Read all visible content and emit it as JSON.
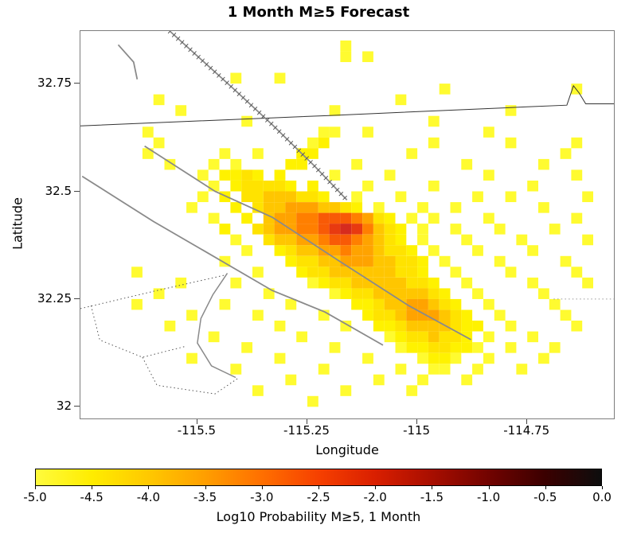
{
  "title": "1 Month M≥5 Forecast",
  "axes": {
    "xlabel": "Longitude",
    "ylabel": "Latitude",
    "x_ticks": [
      {
        "v": -115.5,
        "label": "-115.5"
      },
      {
        "v": -115.25,
        "label": "-115.25"
      },
      {
        "v": -115.0,
        "label": "-115"
      },
      {
        "v": -114.75,
        "label": "-114.75"
      }
    ],
    "y_ticks": [
      {
        "v": 32.75,
        "label": "32.75"
      },
      {
        "v": 32.5,
        "label": "32.5"
      },
      {
        "v": 32.25,
        "label": "32.25"
      },
      {
        "v": 32.0,
        "label": "32"
      }
    ]
  },
  "colorbar": {
    "label": "Log10 Probability M≥5, 1 Month",
    "ticks": [
      "-5.0",
      "-4.5",
      "-4.0",
      "-3.5",
      "-3.0",
      "-2.5",
      "-2.0",
      "-1.5",
      "-1.0",
      "-0.5",
      "0.0"
    ],
    "gradient": [
      {
        "t": 0.0,
        "color": "#FFFB3D"
      },
      {
        "t": 0.1,
        "color": "#FFEC00"
      },
      {
        "t": 0.2,
        "color": "#FFC800"
      },
      {
        "t": 0.3,
        "color": "#FF9E00"
      },
      {
        "t": 0.4,
        "color": "#FF6F00"
      },
      {
        "t": 0.5,
        "color": "#F64000"
      },
      {
        "t": 0.6,
        "color": "#D91F00"
      },
      {
        "t": 0.7,
        "color": "#A80E00"
      },
      {
        "t": 0.8,
        "color": "#720300"
      },
      {
        "t": 0.9,
        "color": "#3B0000"
      },
      {
        "t": 1.0,
        "color": "#0D0D0D"
      }
    ]
  },
  "chart_data": {
    "type": "heatmap",
    "title": "1 Month M≥5 Forecast",
    "xlabel": "Longitude",
    "ylabel": "Latitude",
    "xlim": [
      -115.766,
      -114.553
    ],
    "ylim": [
      31.973,
      32.872
    ],
    "value_label": "Log10 Probability M≥5, 1 Month",
    "value_range": [
      -5.0,
      0.0
    ],
    "legend_position": "bottom-colorbar",
    "grid_on": false,
    "grid": {
      "lon0": -115.75,
      "lat0": 32.85,
      "dlon": 0.025,
      "dlat": 0.025,
      "levels": {
        "a": {
          "value": -5.0,
          "color": "#FFFB30"
        },
        "b": {
          "value": -4.8,
          "color": "#FFF200"
        },
        "c": {
          "value": -4.5,
          "color": "#FFE300"
        },
        "d": {
          "value": -4.1,
          "color": "#FFC600"
        },
        "e": {
          "value": -3.7,
          "color": "#FFA300"
        },
        "f": {
          "value": -3.3,
          "color": "#FF7F00"
        },
        "g": {
          "value": -2.9,
          "color": "#F85A06"
        },
        "h": {
          "value": -2.6,
          "color": "#E83A10"
        },
        "i": {
          "value": -2.3,
          "color": "#D62B1E"
        }
      },
      "rows": [
        ".......................a.......................",
        ".......................a.a.....................",
        "...............................................",
        ".............a...a.............................",
        "................................a...........a..",
        "......a.....................a..................",
        "........a.............a...............a........",
        "..............a................a...............",
        ".....a...............aa..a..........a..........",
        "......a.............ab.........a......a.....a..",
        ".....a......a..a...bb........a.............a...",
        ".......a...a.a....bb....a.........a......a.....",
        "..........a.bbcb.b....a....a........a.......a..",
        "...........a.bccccb.b....a.....a........a......",
        "..........a.b.ccdddccb..a...a......a..a......a.",
        ".........a...b.cddeeeddcb.a...a..a.......a.....",
        "...........a..b.deeffgggfecb.a.a....a.......a..",
        "............b..cdeeffghihfdcb.a..a...a....a....",
        ".............a..cddeefggfedcb.a...a....a.....a.",
        "..............a..bcddeefeedccb.a...a....a......",
        "............a.....bccddeeeddccb.a....a.....a...",
        "....a..........a...bccddddddccb..a....a.....a..",
        "........a....a......abccdddddccb..a.....a....a.",
        "......a.........a.....abccdddddcb..a.....a.....",
        "....a.......a.....a.....bbcddeedcb..a.....a....",
        ".........a.....a.....a...bccdeeedcb..a.....a...",
        ".......a.........a.....a..bbcddddcbb..a.....a..",
        "...........a.......a.......abccdccb.a...a......",
        "..............a.......a.....abbccbba..a...a....",
        ".........a.......a.......a....abba..a....a.....",
        ".............a.......a......a..aa..a...a.......",
        "..................a.......a...a...a............",
        "...............a.......a.....a.................",
        "....................a.........................."
      ]
    },
    "map_features": [
      {
        "name": "international-border",
        "style": "solid",
        "color": "#333333",
        "width": 1,
        "points": [
          [
            -115.766,
            32.652
          ],
          [
            -115.2,
            32.676
          ],
          [
            -114.75,
            32.696
          ],
          [
            -114.66,
            32.7
          ],
          [
            -114.645,
            32.745
          ],
          [
            -114.632,
            32.728
          ],
          [
            -114.617,
            32.703
          ],
          [
            -114.553,
            32.703
          ]
        ]
      },
      {
        "name": "fault-hatched",
        "style": "hatched",
        "color": "#8a8a8a",
        "width": 1.8,
        "points": [
          [
            -115.563,
            32.872
          ],
          [
            -115.42,
            32.74
          ],
          [
            -115.33,
            32.655
          ],
          [
            -115.235,
            32.56
          ],
          [
            -115.16,
            32.48
          ]
        ]
      },
      {
        "name": "fault-short-northwest",
        "style": "solid",
        "color": "#8a8a8a",
        "width": 1.8,
        "points": [
          [
            -115.68,
            32.84
          ],
          [
            -115.645,
            32.8
          ],
          [
            -115.637,
            32.76
          ]
        ]
      },
      {
        "name": "fault-main",
        "style": "solid",
        "color": "#8a8a8a",
        "width": 1.8,
        "points": [
          [
            -115.62,
            32.605
          ],
          [
            -115.46,
            32.5
          ],
          [
            -115.33,
            32.44
          ],
          [
            -115.18,
            32.34
          ],
          [
            -115.02,
            32.235
          ],
          [
            -114.878,
            32.156
          ]
        ]
      },
      {
        "name": "fault-west",
        "style": "solid",
        "color": "#8a8a8a",
        "width": 1.8,
        "points": [
          [
            -115.762,
            32.535
          ],
          [
            -115.6,
            32.43
          ],
          [
            -115.49,
            32.365
          ],
          [
            -115.33,
            32.27
          ],
          [
            -115.21,
            32.22
          ],
          [
            -115.078,
            32.143
          ]
        ]
      },
      {
        "name": "boundary-curve",
        "style": "solid",
        "color": "#8a8a8a",
        "width": 1.5,
        "points": [
          [
            -115.432,
            32.31
          ],
          [
            -115.465,
            32.26
          ],
          [
            -115.492,
            32.205
          ],
          [
            -115.5,
            32.148
          ],
          [
            -115.468,
            32.095
          ],
          [
            -115.413,
            32.068
          ]
        ]
      },
      {
        "name": "dotted-area-north-edge",
        "style": "dotted",
        "color": "#555555",
        "width": 1,
        "points": [
          [
            -115.766,
            32.228
          ],
          [
            -115.6,
            32.268
          ],
          [
            -115.436,
            32.306
          ]
        ]
      },
      {
        "name": "dotted-area-west-edge",
        "style": "dotted",
        "color": "#555555",
        "width": 1,
        "points": [
          [
            -115.742,
            32.235
          ],
          [
            -115.722,
            32.155
          ],
          [
            -115.625,
            32.115
          ],
          [
            -115.528,
            32.14
          ]
        ]
      },
      {
        "name": "dotted-area-south-edge",
        "style": "dotted",
        "color": "#555555",
        "width": 1,
        "points": [
          [
            -115.625,
            32.115
          ],
          [
            -115.592,
            32.05
          ],
          [
            -115.46,
            32.03
          ],
          [
            -115.408,
            32.066
          ]
        ]
      },
      {
        "name": "dotted-graticule-right",
        "style": "dotted",
        "color": "#999999",
        "width": 1,
        "points": [
          [
            -114.69,
            32.25
          ],
          [
            -114.553,
            32.25
          ]
        ]
      }
    ]
  }
}
